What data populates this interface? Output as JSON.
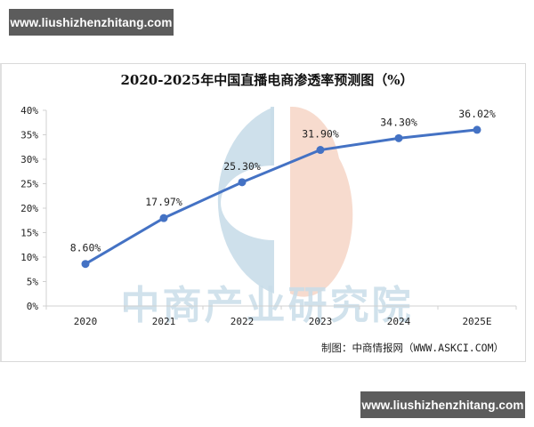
{
  "watermark": {
    "top_text": "www.liushizhenzhitang.com",
    "bottom_text": "www.liushizhenzhitang.com"
  },
  "chart_title": "2020-2025年中国直播电商渗透率预测图（%）",
  "source_note": "制图：中商情报网（WWW.ASKCI.COM）",
  "background_watermark": "中商产业研究院",
  "colors": {
    "line": "#4472c4",
    "logo_blue": "#c9dde9",
    "logo_peach": "#f6d7c9",
    "watermark_text": "#c9dde9"
  },
  "chart_data": {
    "type": "line",
    "title": "2020-2025年中国直播电商渗透率预测图（%）",
    "xlabel": "",
    "ylabel": "",
    "categories": [
      "2020",
      "2021",
      "2022",
      "2023",
      "2024",
      "2025E"
    ],
    "series": [
      {
        "name": "直播电商渗透率",
        "values": [
          8.6,
          17.97,
          25.3,
          31.9,
          34.3,
          36.02
        ],
        "labels": [
          "8.60%",
          "17.97%",
          "25.30%",
          "31.90%",
          "34.30%",
          "36.02%"
        ]
      }
    ],
    "ylim": [
      0,
      40
    ],
    "yticks": [
      "0%",
      "5%",
      "10%",
      "15%",
      "20%",
      "25%",
      "30%",
      "35%",
      "40%"
    ],
    "grid": false,
    "legend": "none"
  }
}
